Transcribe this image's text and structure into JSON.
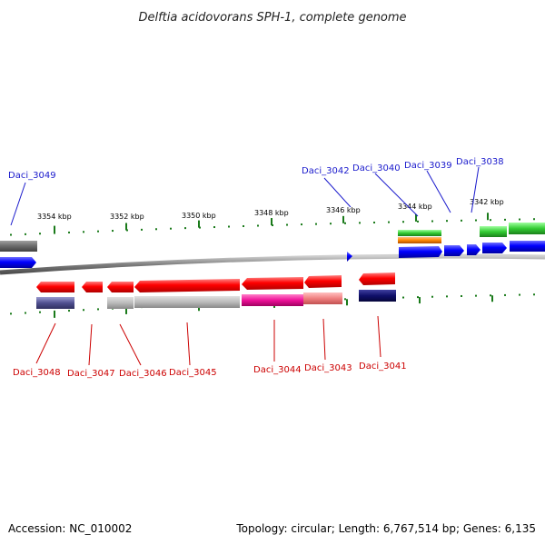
{
  "title": "Delftia acidovorans SPH-1, complete genome",
  "footer": {
    "accession": "Accession: NC_010002",
    "summary": "Topology: circular; Length: 6,767,514 bp; Genes: 6,135"
  },
  "colors": {
    "forward_label": "#1a1acc",
    "reverse_label": "#cc0000",
    "tick": "#1a7a1a",
    "backbone": "#808080"
  },
  "scale_labels": [
    "3354 kbp",
    "3352 kbp",
    "3350 kbp",
    "3348 kbp",
    "3346 kbp",
    "3344 kbp",
    "3342 kbp"
  ],
  "forward_genes": [
    {
      "name": "Daci_3049",
      "label": "Daci_3049"
    },
    {
      "name": "Daci_3042",
      "label": "Daci_3042"
    },
    {
      "name": "Daci_3040",
      "label": "Daci_3040"
    },
    {
      "name": "Daci_3039",
      "label": "Daci_3039"
    },
    {
      "name": "Daci_3038",
      "label": "Daci_3038"
    }
  ],
  "reverse_genes": [
    {
      "name": "Daci_3048",
      "label": "Daci_3048"
    },
    {
      "name": "Daci_3047",
      "label": "Daci_3047"
    },
    {
      "name": "Daci_3046",
      "label": "Daci_3046"
    },
    {
      "name": "Daci_3045",
      "label": "Daci_3045"
    },
    {
      "name": "Daci_3044",
      "label": "Daci_3044"
    },
    {
      "name": "Daci_3043",
      "label": "Daci_3043"
    },
    {
      "name": "Daci_3041",
      "label": "Daci_3041"
    }
  ]
}
